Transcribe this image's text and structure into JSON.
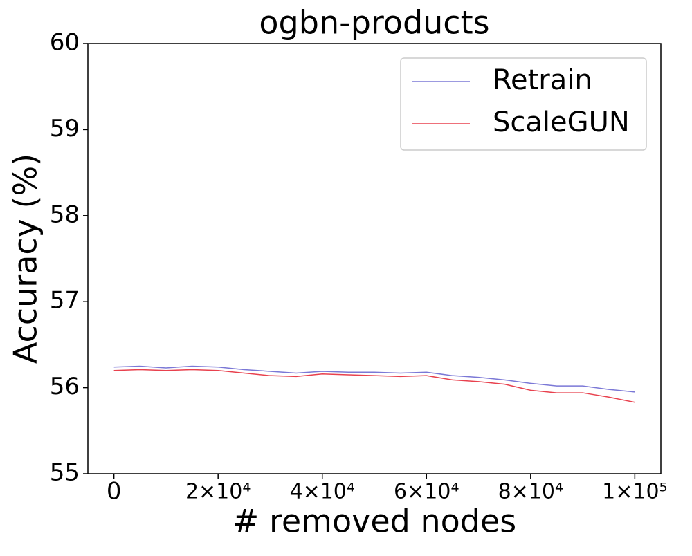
{
  "chart_data": {
    "type": "line",
    "title": "ogbn-products",
    "x_label": "# removed nodes",
    "y_label": "Accuracy (%)",
    "x": [
      0,
      5000,
      10000,
      15000,
      20000,
      25000,
      30000,
      35000,
      40000,
      45000,
      50000,
      55000,
      60000,
      65000,
      70000,
      75000,
      80000,
      85000,
      90000,
      95000,
      100000
    ],
    "series": [
      {
        "name": "Retrain",
        "color": "#7b78d6",
        "values": [
          56.24,
          56.25,
          56.23,
          56.25,
          56.24,
          56.21,
          56.19,
          56.17,
          56.19,
          56.18,
          56.18,
          56.17,
          56.18,
          56.14,
          56.12,
          56.09,
          56.05,
          56.02,
          56.02,
          55.98,
          55.95
        ]
      },
      {
        "name": "ScaleGUN",
        "color": "#e8414e",
        "values": [
          56.2,
          56.21,
          56.2,
          56.21,
          56.2,
          56.17,
          56.14,
          56.13,
          56.16,
          56.15,
          56.14,
          56.13,
          56.14,
          56.09,
          56.07,
          56.04,
          55.97,
          55.94,
          55.94,
          55.89,
          55.83
        ]
      }
    ],
    "xlim": [
      -5000,
      105000
    ],
    "ylim": [
      55,
      60
    ],
    "xticks": [
      0,
      {
        "value": 20000,
        "label": "2×10⁴"
      },
      {
        "value": 40000,
        "label": "4×10⁴"
      },
      {
        "value": 60000,
        "label": "6×10⁴"
      },
      {
        "value": 80000,
        "label": "8×10⁴"
      },
      {
        "value": 100000,
        "label": "1×10⁵"
      }
    ],
    "yticks": [
      55,
      56,
      57,
      58,
      59,
      60
    ],
    "legend": "upper right"
  }
}
